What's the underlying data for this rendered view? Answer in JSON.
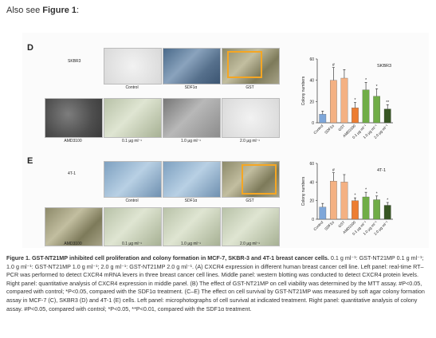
{
  "intro": {
    "prefix": "Also see ",
    "link": "Figure 1",
    "suffix": ":"
  },
  "panels": {
    "D": {
      "letter": "D",
      "cell_line": "SKBR3",
      "micro_labels": [
        "Control",
        "SDF1α",
        "GST",
        "AMD3100",
        "0.1 μg ml⁻¹",
        "1.0 μg ml⁻¹",
        "2.0 μg ml⁻¹"
      ]
    },
    "E": {
      "letter": "E",
      "cell_line": "4T-1",
      "micro_labels": [
        "Control",
        "SDF1α",
        "GST",
        "AMD3100",
        "0.1 μg ml⁻¹",
        "1.0 μg ml⁻¹",
        "2.0 μg ml⁻¹"
      ]
    }
  },
  "chart_data": [
    {
      "type": "bar",
      "title": "SKBR3",
      "ylabel": "Colony numbers",
      "ylim": [
        0,
        60
      ],
      "yticks": [
        0,
        20,
        40,
        60
      ],
      "categories": [
        "Control",
        "SDF1α",
        "GST",
        "AMD3100",
        "0.1 μg ml⁻¹",
        "1.0 μg ml⁻¹",
        "2.0 μg ml⁻¹"
      ],
      "values": [
        8,
        40,
        42,
        14,
        31,
        25,
        13
      ],
      "errors": [
        3,
        12,
        8,
        5,
        7,
        7,
        4
      ],
      "colors": [
        "#7da6d9",
        "#f4b183",
        "#f4b183",
        "#ed7d31",
        "#70ad47",
        "#70ad47",
        "#375623"
      ],
      "marks": [
        "",
        "#",
        "",
        "*",
        "*",
        "*",
        "**"
      ]
    },
    {
      "type": "bar",
      "title": "4T-1",
      "ylabel": "Colony numbers",
      "ylim": [
        0,
        60
      ],
      "yticks": [
        0,
        20,
        40,
        60
      ],
      "categories": [
        "Control",
        "SDF1α",
        "GST",
        "AMD3100",
        "0.1 μg ml⁻¹",
        "1.0 μg ml⁻¹",
        "2.0 μg ml⁻¹"
      ],
      "values": [
        13,
        41,
        40,
        20,
        24,
        21,
        15
      ],
      "errors": [
        4,
        9,
        8,
        3,
        5,
        4,
        3
      ],
      "colors": [
        "#7da6d9",
        "#f4b183",
        "#f4b183",
        "#ed7d31",
        "#70ad47",
        "#70ad47",
        "#375623"
      ],
      "marks": [
        "",
        "#",
        "",
        "*",
        "*",
        "*",
        "*"
      ]
    }
  ],
  "caption": {
    "bold": "Figure 1. GST-NT21MP inhibited cell proliferation and colony formation in MCF-7, SKBR-3 and 4T-1 breast cancer cells.",
    "text": " 0.1 g ml⁻¹: GST-NT21MP 0.1 g ml⁻¹; 1.0 g ml⁻¹: GST-NT21MP 1.0 g ml⁻¹; 2.0 g ml⁻¹: GST-NT21MP 2.0 g ml⁻¹. (A) CXCR4 expression in different human breast cancer cell line. Left panel: real-time RT–PCR was performed to detect CXCR4 mRNA levers in three breast cancer cell lines. Middle panel: western blotting was conducted to detect CXCR4 protein levels. Right panel: quantitative analysis of CXCR4 expression in middle panel. (B) The effect of GST-NT21MP on cell viability was determined by the MTT assay. #P<0.05, compared with control; *P<0.05, compared with the SDF1α treatment. (C–E) The effect on cell survival by GST-NT21MP was measured by soft agar colony formation assay in MCF-7 (C), SKBR3 (D) and 4T-1 (E) cells. Left panel: microphotographs of cell survival at indicated treatment. Right panel: quantitative analysis of colony assay. #P<0.05, compared with control; *P<0.05, **P<0.01, compared with the SDF1α treatment."
  }
}
